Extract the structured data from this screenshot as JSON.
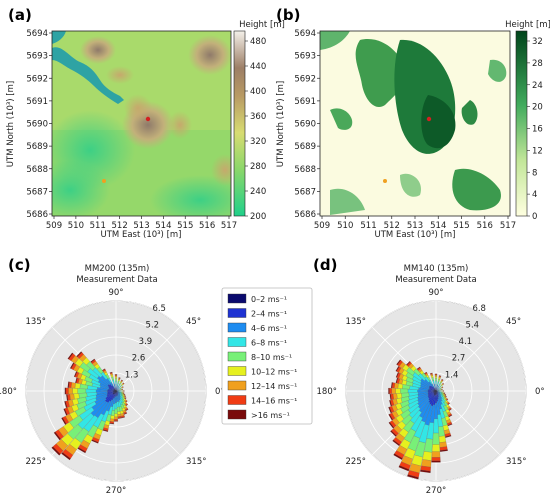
{
  "panels": {
    "a": {
      "label": "(a)",
      "colorbar_title": "Height [m]",
      "colorbar_ticks": [
        "480",
        "440",
        "400",
        "360",
        "320",
        "280",
        "240",
        "200"
      ],
      "x_ticks": [
        "509",
        "510",
        "511",
        "512",
        "513",
        "514",
        "515",
        "516",
        "517"
      ],
      "y_ticks": [
        "5694",
        "5693",
        "5692",
        "5691",
        "5690",
        "5689",
        "5688",
        "5687",
        "5686"
      ],
      "xlabel": "UTM East (10³) [m]",
      "ylabel": "UTM North (10³) [m]",
      "colors": {
        "low": "#2fd088",
        "mid": "#b8db66",
        "high": "#9b8163",
        "top": "#ffffff",
        "water": "#2fa0a6"
      }
    },
    "b": {
      "label": "(b)",
      "colorbar_title": "Height [m]",
      "colorbar_ticks": [
        "32",
        "28",
        "24",
        "20",
        "16",
        "12",
        "8",
        "4",
        "0"
      ],
      "x_ticks": [
        "509",
        "510",
        "511",
        "512",
        "513",
        "514",
        "515",
        "516",
        "517"
      ],
      "y_ticks": [
        "5694",
        "5693",
        "5692",
        "5691",
        "5690",
        "5689",
        "5688",
        "5687",
        "5686"
      ],
      "xlabel": "UTM East (10³) [m]",
      "ylabel": "UTM North (10³) [m]",
      "colors": {
        "low": "#fffde0",
        "high": "#00441b"
      }
    },
    "c": {
      "label": "(c)",
      "title_line1": "MM200 (135m)",
      "title_line2": "Measurement Data",
      "ring_labels": [
        "6.5",
        "5.2",
        "3.9",
        "2.6",
        "1.3"
      ],
      "angle_labels": [
        "90°",
        "45°",
        "0°",
        "315°",
        "270°",
        "225°",
        "180°",
        "135°"
      ]
    },
    "d": {
      "label": "(d)",
      "title_line1": "MM140 (135m)",
      "title_line2": "Measurement Data",
      "ring_labels": [
        "6.8",
        "5.4",
        "4.1",
        "2.7",
        "1.4"
      ],
      "angle_labels": [
        "90°",
        "45°",
        "0°",
        "315°",
        "270°",
        "225°",
        "180°",
        "135°"
      ]
    }
  },
  "legend": {
    "items": [
      {
        "label": "0–2 ms⁻¹",
        "color": "#0a0a6e"
      },
      {
        "label": "2–4 ms⁻¹",
        "color": "#1e32d2"
      },
      {
        "label": "4–6 ms⁻¹",
        "color": "#1e8cf0"
      },
      {
        "label": "6–8 ms⁻¹",
        "color": "#32e6e6"
      },
      {
        "label": "8–10 ms⁻¹",
        "color": "#78f078"
      },
      {
        "label": "10–12 ms⁻¹",
        "color": "#e6f01e"
      },
      {
        "label": "12–14 ms⁻¹",
        "color": "#f0a01e"
      },
      {
        "label": "14–16 ms⁻¹",
        "color": "#f03c14"
      },
      {
        "label": ">16 ms⁻¹",
        "color": "#7a0a0a"
      }
    ]
  },
  "windrose_c": {
    "max": 6.5,
    "directions": [
      120,
      127.5,
      135,
      142.5,
      150,
      157.5,
      165,
      172.5,
      180,
      187.5,
      195,
      202.5,
      210,
      217.5,
      225,
      232.5,
      240,
      247.5,
      255,
      262.5,
      270,
      277.5,
      285,
      292.5,
      300,
      307.5,
      315,
      322.5,
      330,
      337.5,
      345,
      0,
      15,
      30,
      45,
      60,
      75,
      90,
      105
    ],
    "totals": [
      1.8,
      2.8,
      3.8,
      4.2,
      3.7,
      3.2,
      3.0,
      3.5,
      3.7,
      3.6,
      3.8,
      4.0,
      4.4,
      5.4,
      6.2,
      6.0,
      5.0,
      4.0,
      3.0,
      2.4,
      2.2,
      2.0,
      2.0,
      1.8,
      1.6,
      1.3,
      1.1,
      0.9,
      0.8,
      0.7,
      0.6,
      0.6,
      0.5,
      0.6,
      0.8,
      0.9,
      1.0,
      1.2,
      1.4
    ]
  },
  "windrose_d": {
    "max": 6.8,
    "directions": [
      120,
      127.5,
      135,
      142.5,
      150,
      157.5,
      165,
      172.5,
      180,
      187.5,
      195,
      202.5,
      210,
      217.5,
      225,
      232.5,
      240,
      247.5,
      255,
      262.5,
      270,
      277.5,
      285,
      292.5,
      300,
      307.5,
      315,
      322.5,
      330,
      337.5,
      345,
      0,
      15,
      30,
      45,
      60,
      75,
      90,
      105
    ],
    "totals": [
      1.6,
      2.2,
      3.0,
      3.6,
      3.4,
      3.2,
      3.1,
      3.4,
      3.6,
      3.5,
      3.6,
      3.8,
      4.0,
      4.3,
      4.6,
      5.0,
      5.8,
      6.4,
      6.8,
      6.2,
      5.4,
      4.6,
      3.6,
      2.8,
      2.2,
      1.8,
      1.4,
      1.1,
      0.9,
      0.8,
      0.7,
      0.6,
      0.5,
      0.6,
      0.8,
      1.0,
      1.2,
      1.3,
      1.4
    ]
  }
}
